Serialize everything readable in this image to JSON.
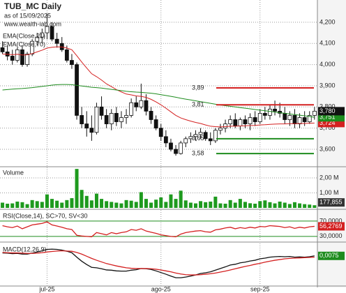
{
  "title": "TUB_MC Daily",
  "subtitle": "as of 15/09/2025",
  "watermark": "www.wealth-lab.com",
  "xticks": [
    {
      "value": 9,
      "label": "jul-25"
    },
    {
      "value": 32,
      "label": "ago-25"
    },
    {
      "value": 52,
      "label": "sep-25"
    }
  ],
  "chart_data": [
    {
      "type": "candlestick",
      "open": [
        4080,
        4060,
        4040,
        4020,
        4070,
        4000,
        4050,
        4110,
        4130,
        4150,
        4180,
        4120,
        4100,
        4070,
        4020,
        4000,
        3760,
        3720,
        3700,
        3680,
        3800,
        3760,
        3720,
        3770,
        3730,
        3750,
        3760,
        3820,
        3800,
        3830,
        3780,
        3740,
        3700,
        3660,
        3630,
        3600,
        3580,
        3630,
        3650,
        3660,
        3670,
        3680,
        3650,
        3640,
        3690,
        3700,
        3720,
        3740,
        3710,
        3740,
        3720,
        3750,
        3730,
        3770,
        3760,
        3790,
        3780,
        3770,
        3740,
        3760,
        3720,
        3750,
        3730,
        3760
      ],
      "high": [
        4110,
        4090,
        4070,
        4080,
        4090,
        4060,
        4120,
        4150,
        4170,
        4240,
        4200,
        4150,
        4130,
        4090,
        4050,
        4010,
        3800,
        3780,
        3760,
        3820,
        3850,
        3790,
        3790,
        3800,
        3780,
        3790,
        3840,
        3850,
        3910,
        3860,
        3800,
        3760,
        3720,
        3690,
        3650,
        3620,
        3640,
        3660,
        3680,
        3690,
        3700,
        3690,
        3680,
        3700,
        3720,
        3740,
        3760,
        3770,
        3750,
        3760,
        3770,
        3780,
        3790,
        3800,
        3810,
        3830,
        3820,
        3800,
        3780,
        3790,
        3770,
        3780,
        3780,
        3800
      ],
      "low": [
        4050,
        4020,
        4000,
        4010,
        3990,
        3990,
        4040,
        4090,
        4100,
        4120,
        4110,
        4080,
        4060,
        4010,
        3980,
        3740,
        3700,
        3660,
        3640,
        3670,
        3740,
        3700,
        3690,
        3710,
        3700,
        3720,
        3750,
        3780,
        3790,
        3760,
        3720,
        3690,
        3640,
        3610,
        3590,
        3570,
        3575,
        3610,
        3630,
        3640,
        3650,
        3640,
        3620,
        3630,
        3670,
        3680,
        3700,
        3700,
        3690,
        3700,
        3690,
        3710,
        3720,
        3740,
        3740,
        3760,
        3750,
        3720,
        3710,
        3700,
        3700,
        3710,
        3720,
        3740
      ],
      "close": [
        4060,
        4040,
        4020,
        4070,
        4000,
        4050,
        4110,
        4130,
        4150,
        4180,
        4120,
        4100,
        4070,
        4020,
        4000,
        3760,
        3720,
        3700,
        3680,
        3800,
        3760,
        3720,
        3770,
        3730,
        3750,
        3760,
        3820,
        3800,
        3830,
        3780,
        3740,
        3700,
        3660,
        3630,
        3600,
        3580,
        3630,
        3650,
        3660,
        3670,
        3680,
        3650,
        3640,
        3690,
        3700,
        3720,
        3740,
        3710,
        3740,
        3720,
        3750,
        3730,
        3770,
        3760,
        3790,
        3780,
        3770,
        3740,
        3760,
        3720,
        3750,
        3730,
        3760,
        3780
      ],
      "close_label": "3,780",
      "series": [
        {
          "name": "EMA(Close,21)",
          "color": "#d42020",
          "last_label": "3,724",
          "values": [
            4050,
            4049,
            4047,
            4049,
            4045,
            4046,
            4052,
            4060,
            4068,
            4078,
            4082,
            4084,
            4083,
            4078,
            4070,
            4042,
            4012,
            3984,
            3957,
            3943,
            3927,
            3909,
            3896,
            3882,
            3871,
            3861,
            3857,
            3852,
            3850,
            3845,
            3836,
            3824,
            3810,
            3794,
            3777,
            3760,
            3748,
            3740,
            3733,
            3727,
            3722,
            3715,
            3709,
            3707,
            3706,
            3707,
            3709,
            3709,
            3710,
            3711,
            3712,
            3713,
            3715,
            3716,
            3718,
            3719,
            3720,
            3720,
            3721,
            3721,
            3722,
            3722,
            3723,
            3724
          ]
        },
        {
          "name": "EMA(Close,70)",
          "color": "#1e8c1e",
          "last_label": "3,751",
          "values": [
            3880,
            3882,
            3884,
            3886,
            3887,
            3889,
            3891,
            3894,
            3897,
            3900,
            3903,
            3905,
            3906,
            3906,
            3905,
            3902,
            3899,
            3896,
            3893,
            3891,
            3889,
            3886,
            3883,
            3880,
            3877,
            3874,
            3872,
            3870,
            3869,
            3867,
            3865,
            3862,
            3858,
            3854,
            3850,
            3846,
            3841,
            3837,
            3833,
            3829,
            3825,
            3821,
            3817,
            3813,
            3809,
            3806,
            3803,
            3800,
            3797,
            3794,
            3791,
            3788,
            3785,
            3782,
            3779,
            3776,
            3773,
            3770,
            3767,
            3764,
            3761,
            3758,
            3755,
            3751
          ]
        }
      ],
      "levels": [
        {
          "value": 3890,
          "label": "3,89",
          "color": "#d42020"
        },
        {
          "value": 3810,
          "label": "3,81",
          "color": "#d42020"
        },
        {
          "value": 3650,
          "label": "3,65",
          "color": "#1e8c1e"
        },
        {
          "value": 3580,
          "label": "3,58",
          "color": "#1e8c1e"
        }
      ],
      "ylim": [
        3521,
        4305
      ],
      "yticks": [
        {
          "value": 4200,
          "label": "4,200"
        },
        {
          "value": 4100,
          "label": "4,100"
        },
        {
          "value": 4000,
          "label": "4,000"
        },
        {
          "value": 3900,
          "label": "3,900"
        },
        {
          "value": 3800,
          "label": "3,800"
        },
        {
          "value": 3700,
          "label": "3,700"
        },
        {
          "value": 3600,
          "label": "3,600"
        }
      ]
    },
    {
      "type": "bar",
      "title": "Volume",
      "color": "#1e9a1e",
      "last_label": "177,855",
      "values": [
        350000,
        280000,
        300000,
        420000,
        380000,
        250000,
        520000,
        450000,
        400000,
        900000,
        600000,
        480000,
        350000,
        520000,
        650000,
        2600000,
        1200000,
        800000,
        500000,
        950000,
        600000,
        450000,
        400000,
        350000,
        300000,
        520000,
        480000,
        400000,
        1050000,
        600000,
        350000,
        550000,
        700000,
        400000,
        900000,
        600000,
        1150000,
        500000,
        350000,
        300000,
        450000,
        380000,
        420000,
        750000,
        300000,
        280000,
        520000,
        350000,
        600000,
        400000,
        310000,
        280000,
        450000,
        500000,
        380000,
        300000,
        420000,
        350000,
        260000,
        380000,
        300000,
        250000,
        220000,
        177855
      ],
      "ylim": [
        0,
        2700000
      ],
      "yticks": [
        {
          "value": 2000000,
          "label": "2,00 M"
        },
        {
          "value": 1000000,
          "label": "1,00 M"
        }
      ]
    },
    {
      "type": "line",
      "title": "RSI(Close,14), SC>70, SV<30",
      "series": [
        {
          "color": "#d42020",
          "last_label": "56,2769",
          "values": [
            58,
            55,
            53,
            57,
            50,
            55,
            60,
            62,
            64,
            68,
            60,
            57,
            54,
            50,
            48,
            33,
            31,
            30,
            29,
            40,
            37,
            34,
            40,
            37,
            40,
            42,
            48,
            46,
            50,
            44,
            41,
            38,
            34,
            32,
            30,
            29,
            36,
            40,
            42,
            44,
            45,
            42,
            41,
            47,
            49,
            52,
            54,
            50,
            53,
            51,
            54,
            52,
            56,
            55,
            58,
            57,
            56,
            53,
            55,
            51,
            54,
            52,
            55,
            56.2769
          ]
        }
      ],
      "ylim": [
        17,
        99
      ],
      "grid_color": "#1e8c1e",
      "yticks": [
        {
          "value": 70,
          "label": "70,0000"
        },
        {
          "value": 30,
          "label": "30,0000"
        }
      ]
    },
    {
      "type": "line",
      "title": "MACD(12,26,9)",
      "series": [
        {
          "color": "#111111",
          "last_label": "0,0075",
          "values": [
            0.02,
            0.019,
            0.017,
            0.018,
            0.015,
            0.015,
            0.019,
            0.024,
            0.029,
            0.035,
            0.036,
            0.035,
            0.032,
            0.027,
            0.021,
            0.002,
            -0.015,
            -0.029,
            -0.041,
            -0.043,
            -0.047,
            -0.052,
            -0.053,
            -0.056,
            -0.057,
            -0.057,
            -0.053,
            -0.051,
            -0.046,
            -0.047,
            -0.05,
            -0.056,
            -0.063,
            -0.07,
            -0.078,
            -0.085,
            -0.085,
            -0.082,
            -0.078,
            -0.073,
            -0.067,
            -0.064,
            -0.06,
            -0.053,
            -0.046,
            -0.039,
            -0.031,
            -0.028,
            -0.022,
            -0.019,
            -0.014,
            -0.011,
            -0.005,
            -0.002,
            0.002,
            0.004,
            0.005,
            0.004,
            0.005,
            0.002,
            0.003,
            0.002,
            0.004,
            0.0075
          ]
        },
        {
          "color": "#d42020",
          "values": [
            0.022,
            0.021,
            0.02,
            0.02,
            0.019,
            0.018,
            0.018,
            0.019,
            0.021,
            0.024,
            0.026,
            0.028,
            0.029,
            0.028,
            0.027,
            0.022,
            0.015,
            0.006,
            -0.003,
            -0.011,
            -0.018,
            -0.025,
            -0.03,
            -0.035,
            -0.039,
            -0.043,
            -0.045,
            -0.046,
            -0.046,
            -0.046,
            -0.047,
            -0.049,
            -0.052,
            -0.056,
            -0.06,
            -0.065,
            -0.069,
            -0.072,
            -0.073,
            -0.073,
            -0.072,
            -0.07,
            -0.068,
            -0.065,
            -0.061,
            -0.057,
            -0.052,
            -0.047,
            -0.042,
            -0.037,
            -0.033,
            -0.028,
            -0.024,
            -0.019,
            -0.015,
            -0.011,
            -0.008,
            -0.005,
            -0.003,
            -0.002,
            -0.001,
            0,
            0.001,
            0.002
          ]
        }
      ],
      "ylim": [
        -0.12,
        0.06
      ],
      "label_color": "#1e8c1e"
    }
  ]
}
